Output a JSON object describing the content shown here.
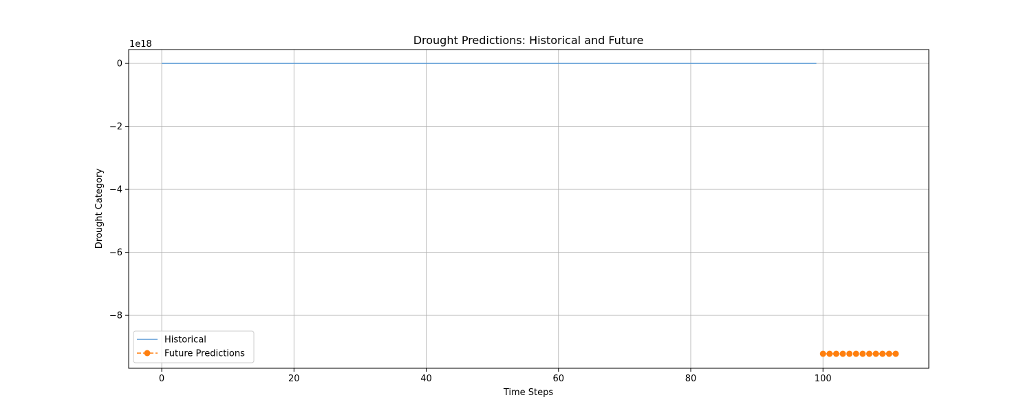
{
  "chart_data": {
    "type": "line",
    "title": "Drought Predictions: Historical and Future",
    "xlabel": "Time Steps",
    "ylabel": "Drought Category",
    "y_offset_text": "1e18",
    "xlim": [
      -5,
      116
    ],
    "ylim": [
      -9.68,
      0.44
    ],
    "x_ticks": [
      0,
      20,
      40,
      60,
      80,
      100
    ],
    "x_tick_labels": [
      "0",
      "20",
      "40",
      "60",
      "80",
      "100"
    ],
    "y_ticks": [
      0,
      -2,
      -4,
      -6,
      -8
    ],
    "y_tick_labels": [
      "0",
      "−2",
      "−4",
      "−6",
      "−8"
    ],
    "grid": true,
    "legend_position": "lower-left",
    "series": [
      {
        "name": "Historical",
        "style": "line",
        "color": "#5b9bd5",
        "x_start": 0,
        "x_end": 99,
        "value": 0
      },
      {
        "name": "Future Predictions",
        "style": "dashed-markers",
        "color": "#ff7f0e",
        "x": [
          100,
          101,
          102,
          103,
          104,
          105,
          106,
          107,
          108,
          109,
          110,
          111
        ],
        "values": [
          -9.22,
          -9.22,
          -9.22,
          -9.22,
          -9.22,
          -9.22,
          -9.22,
          -9.22,
          -9.22,
          -9.22,
          -9.22,
          -9.22
        ]
      }
    ]
  }
}
